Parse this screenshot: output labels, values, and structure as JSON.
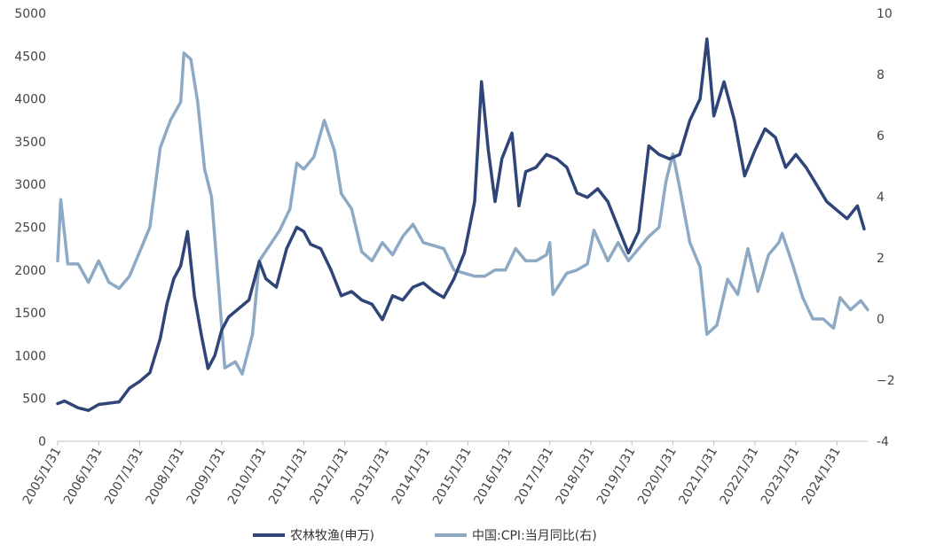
{
  "chart_data": {
    "type": "line",
    "title": "",
    "legend_position": "bottom",
    "x_ticks": [
      "2005/1/31",
      "2006/1/31",
      "2007/1/31",
      "2008/1/31",
      "2009/1/31",
      "2010/1/31",
      "2011/1/31",
      "2012/1/31",
      "2013/1/31",
      "2014/1/31",
      "2015/1/31",
      "2016/1/31",
      "2017/1/31",
      "2018/1/31",
      "2019/1/31",
      "2020/1/31",
      "2021/1/31",
      "2022/1/31",
      "2023/1/31",
      "2024/1/31"
    ],
    "x_range": [
      "2005/1/31",
      "2024/10/31"
    ],
    "y_left": {
      "ylim": [
        0,
        5000
      ],
      "ticks": [
        0,
        500,
        1000,
        1500,
        2000,
        2500,
        3000,
        3500,
        4000,
        4500,
        5000
      ]
    },
    "y_right": {
      "ylim": [
        -4,
        10
      ],
      "ticks": [
        -4,
        -2,
        0,
        2,
        4,
        6,
        8,
        10
      ],
      "tick_labels": [
        "-4",
        "−2",
        "0",
        "2",
        "4",
        "6",
        "8",
        "10"
      ]
    },
    "series": [
      {
        "name": "农林牧渔(申万)",
        "axis": "left",
        "color": "#2f4477",
        "points": [
          [
            "2005/1/31",
            440
          ],
          [
            "2005/3/31",
            470
          ],
          [
            "2005/7/31",
            390
          ],
          [
            "2005/10/31",
            360
          ],
          [
            "2006/1/31",
            430
          ],
          [
            "2006/7/31",
            460
          ],
          [
            "2006/10/31",
            620
          ],
          [
            "2007/1/31",
            700
          ],
          [
            "2007/4/30",
            800
          ],
          [
            "2007/7/31",
            1200
          ],
          [
            "2007/9/30",
            1600
          ],
          [
            "2007/11/30",
            1900
          ],
          [
            "2008/1/31",
            2050
          ],
          [
            "2008/3/31",
            2450
          ],
          [
            "2008/5/31",
            1700
          ],
          [
            "2008/7/31",
            1250
          ],
          [
            "2008/9/30",
            850
          ],
          [
            "2008/11/30",
            1000
          ],
          [
            "2009/1/31",
            1300
          ],
          [
            "2009/3/31",
            1450
          ],
          [
            "2009/6/30",
            1550
          ],
          [
            "2009/9/30",
            1650
          ],
          [
            "2009/12/31",
            2100
          ],
          [
            "2010/2/28",
            1900
          ],
          [
            "2010/5/31",
            1800
          ],
          [
            "2010/8/31",
            2250
          ],
          [
            "2010/11/30",
            2500
          ],
          [
            "2011/1/31",
            2450
          ],
          [
            "2011/3/31",
            2300
          ],
          [
            "2011/6/30",
            2250
          ],
          [
            "2011/9/30",
            2000
          ],
          [
            "2011/12/31",
            1700
          ],
          [
            "2012/3/31",
            1750
          ],
          [
            "2012/6/30",
            1650
          ],
          [
            "2012/9/30",
            1600
          ],
          [
            "2012/12/31",
            1420
          ],
          [
            "2013/3/31",
            1700
          ],
          [
            "2013/6/30",
            1650
          ],
          [
            "2013/9/30",
            1800
          ],
          [
            "2013/12/31",
            1850
          ],
          [
            "2014/3/31",
            1750
          ],
          [
            "2014/6/30",
            1680
          ],
          [
            "2014/9/30",
            1900
          ],
          [
            "2014/12/31",
            2200
          ],
          [
            "2015/3/31",
            2800
          ],
          [
            "2015/5/31",
            4200
          ],
          [
            "2015/7/31",
            3400
          ],
          [
            "2015/9/30",
            2800
          ],
          [
            "2015/11/30",
            3300
          ],
          [
            "2016/2/29",
            3600
          ],
          [
            "2016/4/30",
            2750
          ],
          [
            "2016/6/30",
            3150
          ],
          [
            "2016/9/30",
            3200
          ],
          [
            "2016/12/31",
            3350
          ],
          [
            "2017/3/31",
            3300
          ],
          [
            "2017/6/30",
            3200
          ],
          [
            "2017/9/30",
            2900
          ],
          [
            "2017/12/31",
            2850
          ],
          [
            "2018/3/31",
            2950
          ],
          [
            "2018/6/30",
            2800
          ],
          [
            "2018/9/30",
            2500
          ],
          [
            "2018/12/31",
            2200
          ],
          [
            "2019/3/31",
            2450
          ],
          [
            "2019/6/30",
            3450
          ],
          [
            "2019/9/30",
            3350
          ],
          [
            "2019/12/31",
            3300
          ],
          [
            "2020/3/31",
            3350
          ],
          [
            "2020/6/30",
            3750
          ],
          [
            "2020/9/30",
            4000
          ],
          [
            "2020/11/30",
            4700
          ],
          [
            "2021/1/31",
            3800
          ],
          [
            "2021/4/30",
            4200
          ],
          [
            "2021/7/31",
            3750
          ],
          [
            "2021/10/31",
            3100
          ],
          [
            "2022/1/31",
            3400
          ],
          [
            "2022/4/30",
            3650
          ],
          [
            "2022/7/31",
            3550
          ],
          [
            "2022/10/31",
            3200
          ],
          [
            "2023/1/31",
            3350
          ],
          [
            "2023/4/30",
            3200
          ],
          [
            "2023/7/31",
            3000
          ],
          [
            "2023/10/31",
            2800
          ],
          [
            "2024/1/31",
            2700
          ],
          [
            "2024/4/30",
            2600
          ],
          [
            "2024/7/31",
            2750
          ],
          [
            "2024/9/30",
            2480
          ]
        ]
      },
      {
        "name": "中国:CPI:当月同比(右)",
        "axis": "right",
        "color": "#8ea9c4",
        "points": [
          [
            "2005/1/31",
            1.9
          ],
          [
            "2005/2/28",
            3.9
          ],
          [
            "2005/4/30",
            1.8
          ],
          [
            "2005/7/31",
            1.8
          ],
          [
            "2005/10/31",
            1.2
          ],
          [
            "2006/1/31",
            1.9
          ],
          [
            "2006/4/30",
            1.2
          ],
          [
            "2006/7/31",
            1.0
          ],
          [
            "2006/10/31",
            1.4
          ],
          [
            "2007/1/31",
            2.2
          ],
          [
            "2007/4/30",
            3.0
          ],
          [
            "2007/7/31",
            5.6
          ],
          [
            "2007/10/31",
            6.5
          ],
          [
            "2008/1/31",
            7.1
          ],
          [
            "2008/2/29",
            8.7
          ],
          [
            "2008/4/30",
            8.5
          ],
          [
            "2008/6/30",
            7.1
          ],
          [
            "2008/8/31",
            4.9
          ],
          [
            "2008/10/31",
            4.0
          ],
          [
            "2008/12/31",
            1.2
          ],
          [
            "2009/2/28",
            -1.6
          ],
          [
            "2009/5/31",
            -1.4
          ],
          [
            "2009/7/31",
            -1.8
          ],
          [
            "2009/10/31",
            -0.5
          ],
          [
            "2009/12/31",
            1.9
          ],
          [
            "2010/3/31",
            2.4
          ],
          [
            "2010/6/30",
            2.9
          ],
          [
            "2010/9/30",
            3.6
          ],
          [
            "2010/11/30",
            5.1
          ],
          [
            "2011/1/31",
            4.9
          ],
          [
            "2011/4/30",
            5.3
          ],
          [
            "2011/7/31",
            6.5
          ],
          [
            "2011/10/31",
            5.5
          ],
          [
            "2011/12/31",
            4.1
          ],
          [
            "2012/3/31",
            3.6
          ],
          [
            "2012/6/30",
            2.2
          ],
          [
            "2012/9/30",
            1.9
          ],
          [
            "2012/12/31",
            2.5
          ],
          [
            "2013/3/31",
            2.1
          ],
          [
            "2013/6/30",
            2.7
          ],
          [
            "2013/9/30",
            3.1
          ],
          [
            "2013/12/31",
            2.5
          ],
          [
            "2014/3/31",
            2.4
          ],
          [
            "2014/6/30",
            2.3
          ],
          [
            "2014/9/30",
            1.6
          ],
          [
            "2014/12/31",
            1.5
          ],
          [
            "2015/3/31",
            1.4
          ],
          [
            "2015/6/30",
            1.4
          ],
          [
            "2015/9/30",
            1.6
          ],
          [
            "2015/12/31",
            1.6
          ],
          [
            "2016/3/31",
            2.3
          ],
          [
            "2016/6/30",
            1.9
          ],
          [
            "2016/9/30",
            1.9
          ],
          [
            "2016/12/31",
            2.1
          ],
          [
            "2017/1/31",
            2.5
          ],
          [
            "2017/2/28",
            0.8
          ],
          [
            "2017/6/30",
            1.5
          ],
          [
            "2017/9/30",
            1.6
          ],
          [
            "2017/12/31",
            1.8
          ],
          [
            "2018/2/28",
            2.9
          ],
          [
            "2018/6/30",
            1.9
          ],
          [
            "2018/9/30",
            2.5
          ],
          [
            "2018/12/31",
            1.9
          ],
          [
            "2019/3/31",
            2.3
          ],
          [
            "2019/6/30",
            2.7
          ],
          [
            "2019/9/30",
            3.0
          ],
          [
            "2019/11/30",
            4.5
          ],
          [
            "2020/1/31",
            5.4
          ],
          [
            "2020/3/31",
            4.3
          ],
          [
            "2020/6/30",
            2.5
          ],
          [
            "2020/9/30",
            1.7
          ],
          [
            "2020/11/30",
            -0.5
          ],
          [
            "2021/2/28",
            -0.2
          ],
          [
            "2021/5/31",
            1.3
          ],
          [
            "2021/8/31",
            0.8
          ],
          [
            "2021/11/30",
            2.3
          ],
          [
            "2022/2/28",
            0.9
          ],
          [
            "2022/5/31",
            2.1
          ],
          [
            "2022/8/31",
            2.5
          ],
          [
            "2022/9/30",
            2.8
          ],
          [
            "2022/12/31",
            1.8
          ],
          [
            "2023/3/31",
            0.7
          ],
          [
            "2023/6/30",
            0.0
          ],
          [
            "2023/9/30",
            0.0
          ],
          [
            "2023/12/31",
            -0.3
          ],
          [
            "2024/2/29",
            0.7
          ],
          [
            "2024/5/31",
            0.3
          ],
          [
            "2024/8/31",
            0.6
          ],
          [
            "2024/10/31",
            0.3
          ]
        ]
      }
    ]
  }
}
